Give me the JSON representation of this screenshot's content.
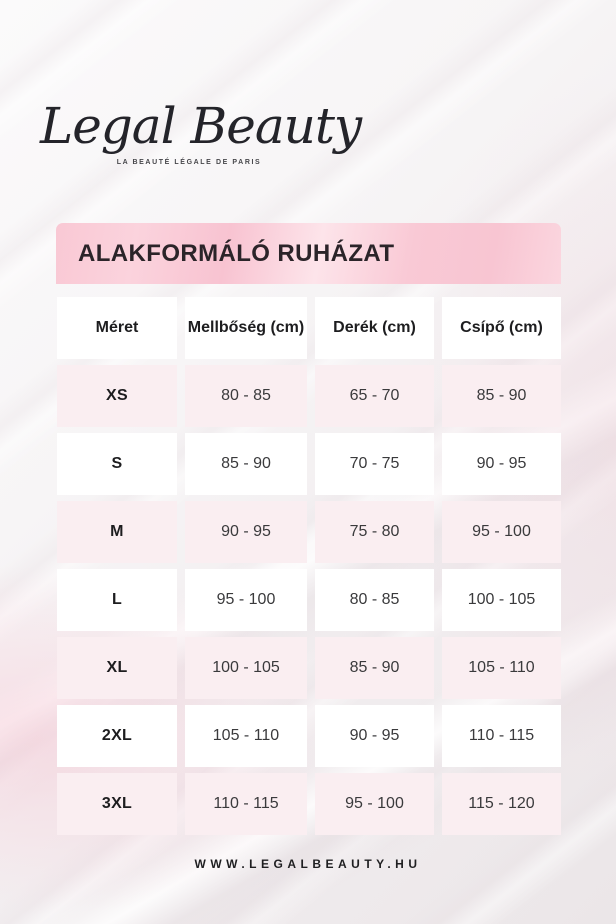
{
  "logo": {
    "brand": "Legal Beauty",
    "tagline": "LA BEAUTÉ LÉGALE DE PARIS"
  },
  "banner": {
    "title": "ALAKFORMÁLÓ RUHÁZAT"
  },
  "table": {
    "columns": [
      "Méret",
      "Mellbőség (cm)",
      "Derék (cm)",
      "Csípő (cm)"
    ],
    "rows": [
      [
        "XS",
        "80 - 85",
        "65 - 70",
        "85 - 90"
      ],
      [
        "S",
        "85 - 90",
        "70 - 75",
        "90 - 95"
      ],
      [
        "M",
        "90 - 95",
        "75 - 80",
        "95 - 100"
      ],
      [
        "L",
        "95 - 100",
        "80 - 85",
        "100 - 105"
      ],
      [
        "XL",
        "100 - 105",
        "85 - 90",
        "105 - 110"
      ],
      [
        "2XL",
        "105 - 110",
        "90 - 95",
        "110 - 115"
      ],
      [
        "3XL",
        "110 - 115",
        "95 - 100",
        "115 - 120"
      ]
    ]
  },
  "footer": {
    "website": "WWW.LEGALBEAUTY.HU"
  },
  "colors": {
    "banner_pink": "#f9c8d4",
    "row_pink": "#faeef1",
    "row_white": "#ffffff",
    "text_dark": "#1d1d1f",
    "background": "#f3eff1"
  }
}
